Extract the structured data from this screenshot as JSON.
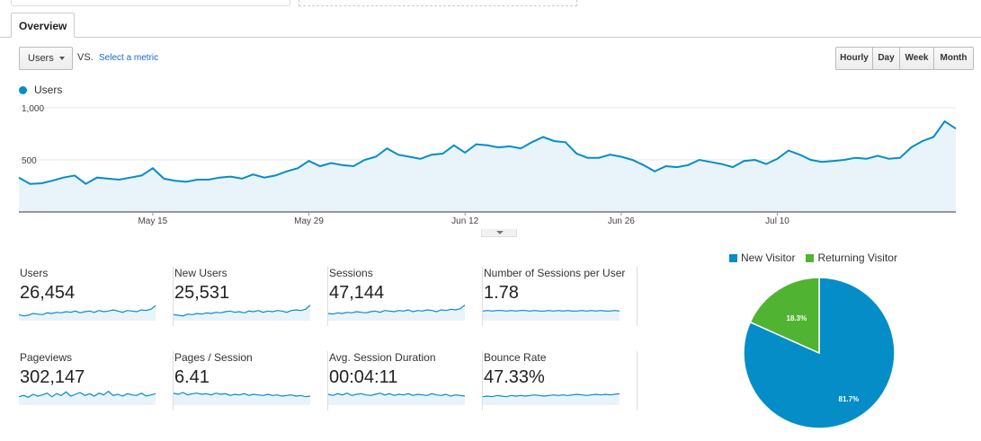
{
  "tabs": [
    {
      "label": "Overview"
    }
  ],
  "controls": {
    "metric_selected": "Users",
    "vs_label": "VS.",
    "select_metric_label": "Select a metric",
    "granularity": [
      {
        "label": "Hourly",
        "active": false
      },
      {
        "label": "Day",
        "active": true
      },
      {
        "label": "Week",
        "active": false
      },
      {
        "label": "Month",
        "active": false
      }
    ]
  },
  "colors": {
    "series": "#058dc7",
    "series_fill": "#e8f3fa",
    "new_visitor": "#058dc7",
    "returning_visitor": "#50b432"
  },
  "chart_data": [
    {
      "type": "area",
      "legend": [
        "Users"
      ],
      "x_tick_labels": [
        "May 15",
        "May 29",
        "Jun 12",
        "Jun 26",
        "Jul 10"
      ],
      "y_tick_labels": [
        "1,000",
        "500"
      ],
      "ylim": [
        0,
        1000
      ],
      "grid": true,
      "series": [
        {
          "name": "Users",
          "values": [
            330,
            270,
            275,
            300,
            330,
            350,
            270,
            330,
            320,
            310,
            330,
            350,
            420,
            320,
            300,
            290,
            310,
            310,
            330,
            340,
            320,
            360,
            330,
            350,
            390,
            420,
            490,
            440,
            470,
            450,
            440,
            500,
            530,
            610,
            550,
            530,
            510,
            550,
            560,
            640,
            570,
            650,
            640,
            620,
            630,
            610,
            670,
            720,
            680,
            670,
            560,
            520,
            520,
            550,
            530,
            500,
            450,
            390,
            440,
            430,
            450,
            500,
            480,
            460,
            430,
            490,
            500,
            460,
            510,
            590,
            550,
            500,
            480,
            490,
            500,
            520,
            510,
            540,
            510,
            520,
            620,
            680,
            720,
            870,
            800
          ]
        }
      ]
    },
    {
      "type": "pie",
      "legend": [
        "New Visitor",
        "Returning Visitor"
      ],
      "series": [
        {
          "name": "Visitors",
          "values": [
            81.7,
            18.3
          ],
          "labels": [
            "81.7%",
            "18.3%"
          ],
          "categories": [
            "New Visitor",
            "Returning Visitor"
          ]
        }
      ]
    }
  ],
  "metrics": [
    {
      "label": "Users",
      "value": "26,454",
      "spark": [
        30,
        28,
        29,
        32,
        31,
        30,
        33,
        32,
        34,
        33,
        35,
        34,
        36,
        33,
        35,
        36,
        34,
        37,
        35,
        36,
        38,
        36,
        34,
        37,
        36,
        35,
        38,
        37,
        39,
        45
      ]
    },
    {
      "label": "New Users",
      "value": "25,531",
      "spark": [
        30,
        29,
        28,
        31,
        30,
        32,
        31,
        33,
        32,
        34,
        33,
        35,
        36,
        34,
        35,
        33,
        36,
        35,
        37,
        34,
        36,
        35,
        37,
        36,
        34,
        37,
        38,
        37,
        39,
        46
      ]
    },
    {
      "label": "Sessions",
      "value": "47,144",
      "spark": [
        32,
        31,
        33,
        32,
        34,
        33,
        35,
        34,
        33,
        35,
        36,
        34,
        37,
        36,
        35,
        37,
        36,
        38,
        35,
        37,
        36,
        38,
        37,
        35,
        38,
        37,
        39,
        38,
        40,
        46
      ]
    },
    {
      "label": "Number of Sessions per User",
      "value": "1.78",
      "spark": [
        36,
        37,
        36,
        37,
        37,
        36,
        37,
        36,
        37,
        37,
        36,
        37,
        36,
        36,
        37,
        36,
        37,
        36,
        37,
        36,
        36,
        37,
        36,
        37,
        36,
        37,
        36,
        36,
        37,
        36
      ]
    },
    {
      "label": "Pageviews",
      "value": "302,147",
      "spark": [
        34,
        36,
        33,
        38,
        35,
        37,
        40,
        34,
        39,
        36,
        42,
        35,
        38,
        41,
        36,
        39,
        35,
        40,
        37,
        43,
        36,
        38,
        35,
        39,
        37,
        36,
        40,
        35,
        37,
        39
      ]
    },
    {
      "label": "Pages / Session",
      "value": "6.41",
      "spark": [
        40,
        38,
        41,
        37,
        39,
        40,
        38,
        39,
        37,
        40,
        38,
        39,
        36,
        38,
        37,
        39,
        36,
        38,
        37,
        36,
        38,
        36,
        37,
        35,
        36,
        37,
        35,
        36,
        34,
        35
      ]
    },
    {
      "label": "Avg. Session Duration",
      "value": "00:04:11",
      "spark": [
        38,
        36,
        39,
        37,
        40,
        36,
        38,
        39,
        37,
        36,
        38,
        40,
        37,
        39,
        36,
        38,
        37,
        39,
        36,
        38,
        37,
        36,
        39,
        37,
        36,
        38,
        35,
        37,
        36,
        35
      ]
    },
    {
      "label": "Bounce Rate",
      "value": "47.33%",
      "spark": [
        34,
        35,
        34,
        36,
        35,
        34,
        36,
        35,
        36,
        35,
        36,
        37,
        36,
        35,
        36,
        37,
        36,
        37,
        36,
        37,
        38,
        37,
        36,
        37,
        38,
        37,
        38,
        37,
        38,
        39
      ]
    }
  ]
}
